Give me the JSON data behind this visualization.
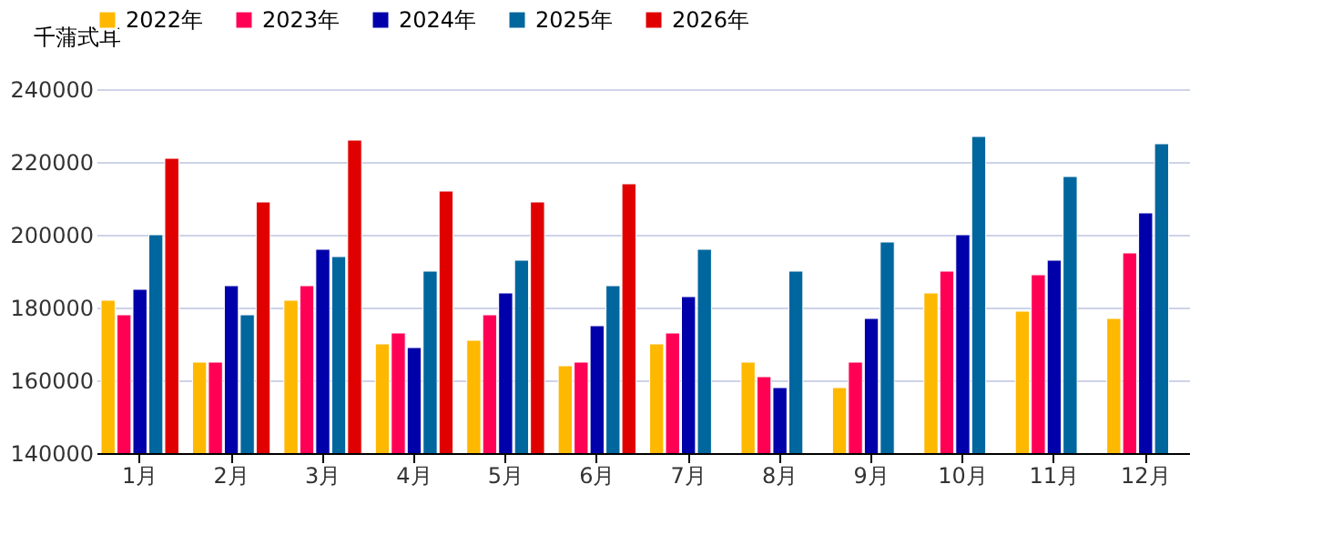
{
  "chart_data": {
    "type": "bar",
    "categories": [
      "1月",
      "2月",
      "3月",
      "4月",
      "5月",
      "6月",
      "7月",
      "8月",
      "9月",
      "10月",
      "11月",
      "12月"
    ],
    "ylabel": "千蒲式耳",
    "series": [
      {
        "name": "2022年",
        "color": "#ffb800",
        "values": [
          182000,
          165000,
          182000,
          170000,
          171000,
          164000,
          170000,
          165000,
          158000,
          184000,
          179000,
          177000
        ]
      },
      {
        "name": "2023年",
        "color": "#ff0055",
        "values": [
          178000,
          165000,
          186000,
          173000,
          178000,
          165000,
          173000,
          161000,
          165000,
          190000,
          189000,
          195000
        ]
      },
      {
        "name": "2024年",
        "color": "#0000aa",
        "values": [
          185000,
          186000,
          196000,
          169000,
          184000,
          175000,
          183000,
          158000,
          177000,
          200000,
          193000,
          206000
        ]
      },
      {
        "name": "2025年",
        "color": "#00669e",
        "values": [
          200000,
          178000,
          194000,
          190000,
          193000,
          186000,
          196000,
          190000,
          198000,
          227000,
          216000,
          225000
        ]
      },
      {
        "name": "2026年",
        "color": "#e00000",
        "values": [
          221000,
          209000,
          226000,
          212000,
          209000,
          214000,
          null,
          null,
          null,
          null,
          null,
          null
        ]
      }
    ],
    "ylim": [
      140000,
      240000
    ],
    "yticks": [
      140000,
      160000,
      180000,
      200000,
      220000,
      240000
    ],
    "grid": "y",
    "legend": "top left"
  }
}
